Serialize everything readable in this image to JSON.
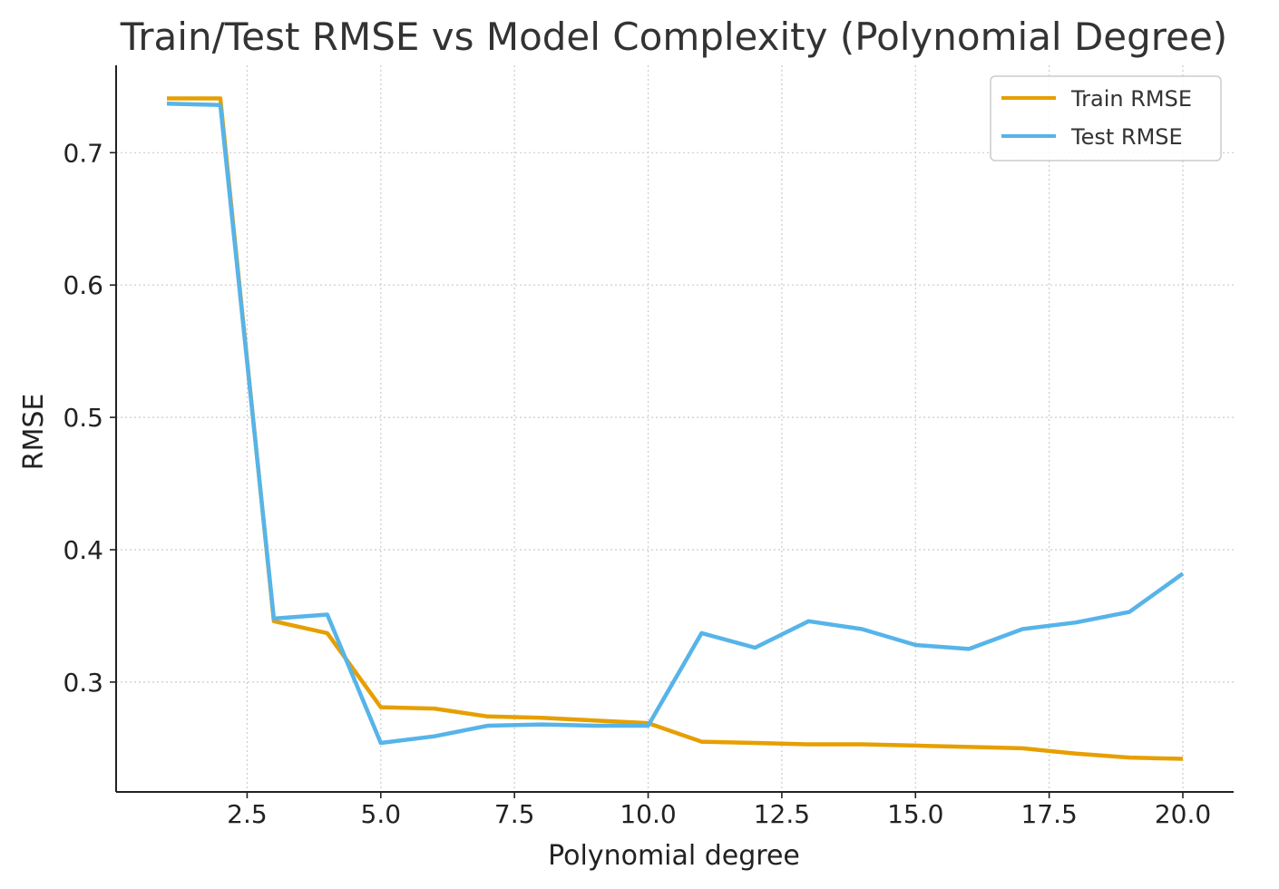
{
  "chart_data": {
    "type": "line",
    "title": "Train/Test RMSE vs Model Complexity (Polynomial Degree)",
    "xlabel": "Polynomial degree",
    "ylabel": "RMSE",
    "xlim": [
      0.05,
      20.95
    ],
    "ylim": [
      0.217,
      0.766
    ],
    "xticks": [
      2.5,
      5.0,
      7.5,
      10.0,
      12.5,
      15.0,
      17.5,
      20.0
    ],
    "xtick_labels": [
      "2.5",
      "5.0",
      "7.5",
      "10.0",
      "12.5",
      "15.0",
      "17.5",
      "20.0"
    ],
    "yticks": [
      0.3,
      0.4,
      0.5,
      0.6,
      0.7
    ],
    "ytick_labels": [
      "0.3",
      "0.4",
      "0.5",
      "0.6",
      "0.7"
    ],
    "grid": true,
    "legend_position": "top-right",
    "x": [
      1,
      2,
      3,
      4,
      5,
      6,
      7,
      8,
      9,
      10,
      11,
      12,
      13,
      14,
      15,
      16,
      17,
      18,
      19,
      20
    ],
    "series": [
      {
        "name": "Train RMSE",
        "color": "#E69F00",
        "values": [
          0.741,
          0.741,
          0.346,
          0.337,
          0.281,
          0.28,
          0.274,
          0.273,
          0.271,
          0.269,
          0.255,
          0.254,
          0.253,
          0.253,
          0.252,
          0.251,
          0.25,
          0.246,
          0.243,
          0.242
        ]
      },
      {
        "name": "Test RMSE",
        "color": "#56B4E9",
        "values": [
          0.737,
          0.736,
          0.348,
          0.351,
          0.254,
          0.259,
          0.267,
          0.268,
          0.267,
          0.267,
          0.337,
          0.326,
          0.346,
          0.34,
          0.328,
          0.325,
          0.34,
          0.345,
          0.353,
          0.382
        ]
      }
    ]
  }
}
